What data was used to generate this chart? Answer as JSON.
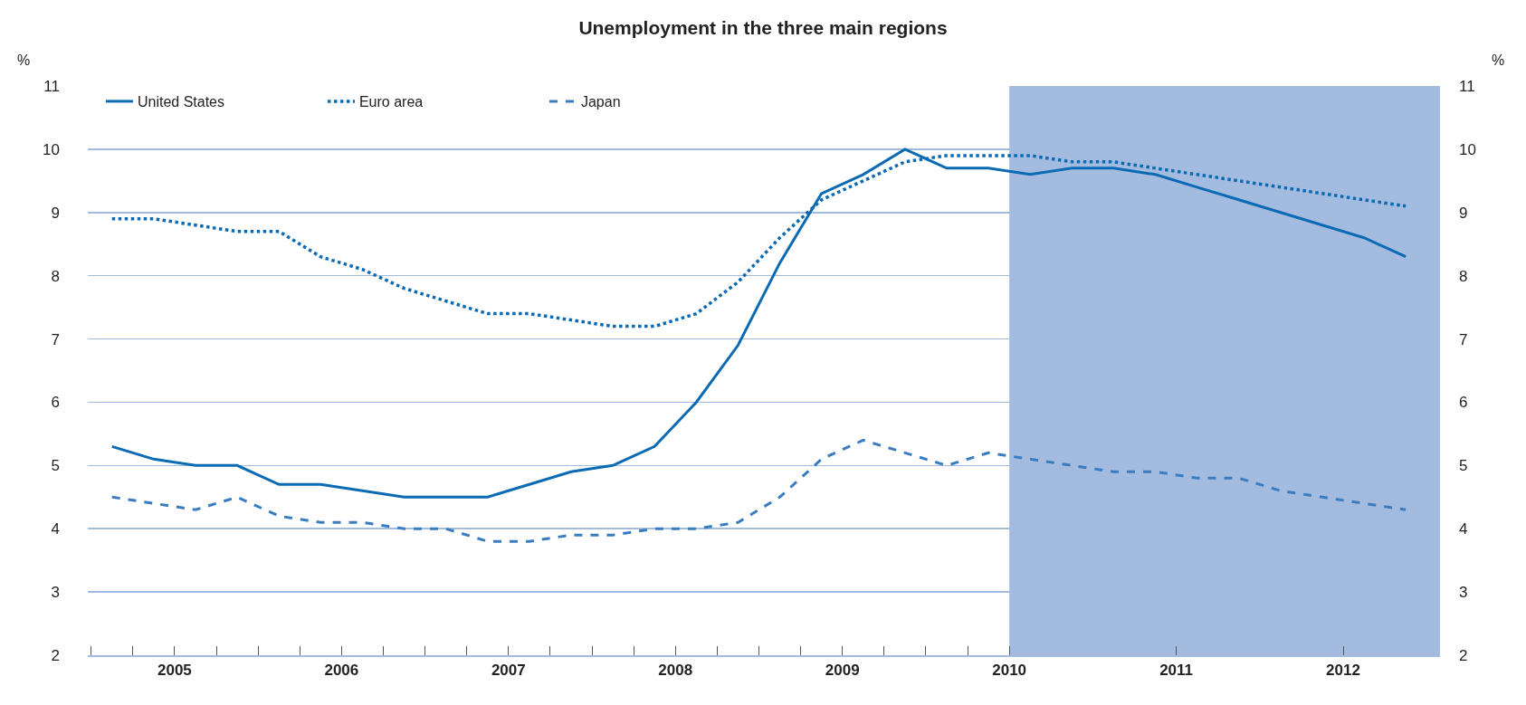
{
  "chart_data": {
    "type": "line",
    "title": "Unemployment in the three main regions",
    "ylabel": "%",
    "y2label": "%",
    "x": [
      2005.125,
      2005.375,
      2005.625,
      2005.875,
      2006.125,
      2006.375,
      2006.625,
      2006.875,
      2007.125,
      2007.375,
      2007.625,
      2007.875,
      2008.125,
      2008.375,
      2008.625,
      2008.875,
      2009.125,
      2009.375,
      2009.625,
      2009.875,
      2010.125,
      2010.375,
      2010.625,
      2010.875,
      2011.125,
      2011.375,
      2011.625,
      2011.875,
      2012.125,
      2012.375,
      2012.625,
      2012.875
    ],
    "series": [
      {
        "name": "United States",
        "color": "#0a6ab3",
        "line_style": "solid",
        "values": [
          5.3,
          5.1,
          5.0,
          5.0,
          4.7,
          4.7,
          4.6,
          4.5,
          4.5,
          4.5,
          4.7,
          4.9,
          5.0,
          5.3,
          6.0,
          6.9,
          8.2,
          9.3,
          9.6,
          10.0,
          9.7,
          9.7,
          9.6,
          9.7,
          9.7,
          9.6,
          9.4,
          9.2,
          9.0,
          8.8,
          8.6,
          8.3
        ]
      },
      {
        "name": "Euro area",
        "color": "#0a6ab3",
        "line_style": "dotted",
        "values": [
          8.9,
          8.9,
          8.8,
          8.7,
          8.7,
          8.3,
          8.1,
          7.8,
          7.6,
          7.4,
          7.4,
          7.3,
          7.2,
          7.2,
          7.4,
          7.9,
          8.6,
          9.2,
          9.5,
          9.8,
          9.9,
          9.9,
          9.9,
          9.8,
          9.8,
          9.7,
          9.6,
          9.5,
          9.4,
          9.3,
          9.2,
          9.1
        ]
      },
      {
        "name": "Japan",
        "color": "#3a7cc0",
        "line_style": "dashed",
        "values": [
          4.5,
          4.4,
          4.3,
          4.5,
          4.2,
          4.1,
          4.1,
          4.0,
          4.0,
          3.8,
          3.8,
          3.9,
          3.9,
          4.0,
          4.0,
          4.1,
          4.5,
          5.1,
          5.4,
          5.2,
          5.0,
          5.2,
          5.1,
          5.0,
          4.9,
          4.9,
          4.8,
          4.8,
          4.6,
          4.5,
          4.4,
          4.3
        ]
      }
    ],
    "xlim": [
      2004.98,
      2013.08
    ],
    "xticks": [
      {
        "value": 2005,
        "label": null
      },
      {
        "value": 2005.25,
        "label": null
      },
      {
        "value": 2005.5,
        "label": "2005"
      },
      {
        "value": 2005.75,
        "label": null
      },
      {
        "value": 2006,
        "label": null
      },
      {
        "value": 2006.25,
        "label": null
      },
      {
        "value": 2006.5,
        "label": "2006"
      },
      {
        "value": 2006.75,
        "label": null
      },
      {
        "value": 2007,
        "label": null
      },
      {
        "value": 2007.25,
        "label": null
      },
      {
        "value": 2007.5,
        "label": "2007"
      },
      {
        "value": 2007.75,
        "label": null
      },
      {
        "value": 2008,
        "label": null
      },
      {
        "value": 2008.25,
        "label": null
      },
      {
        "value": 2008.5,
        "label": "2008"
      },
      {
        "value": 2008.75,
        "label": null
      },
      {
        "value": 2009,
        "label": null
      },
      {
        "value": 2009.25,
        "label": null
      },
      {
        "value": 2009.5,
        "label": "2009"
      },
      {
        "value": 2009.75,
        "label": null
      },
      {
        "value": 2010,
        "label": null
      },
      {
        "value": 2010.25,
        "label": null
      },
      {
        "value": 2010.5,
        "label": "2010"
      },
      {
        "value": 2011.5,
        "label": "2011"
      },
      {
        "value": 2012.5,
        "label": "2012"
      }
    ],
    "ylim": [
      2,
      11
    ],
    "yticks": [
      2,
      3,
      4,
      5,
      6,
      7,
      8,
      9,
      10,
      11
    ],
    "y2lim": [
      2,
      11
    ],
    "y2ticks": [
      2,
      3,
      4,
      5,
      6,
      7,
      8,
      9,
      10,
      11
    ],
    "bands": [
      {
        "axis": "x",
        "from": 2010.5,
        "to": 2013.08,
        "color": "#a4bbe0"
      }
    ],
    "grid": "y",
    "legend": "top left",
    "marker": "none"
  }
}
